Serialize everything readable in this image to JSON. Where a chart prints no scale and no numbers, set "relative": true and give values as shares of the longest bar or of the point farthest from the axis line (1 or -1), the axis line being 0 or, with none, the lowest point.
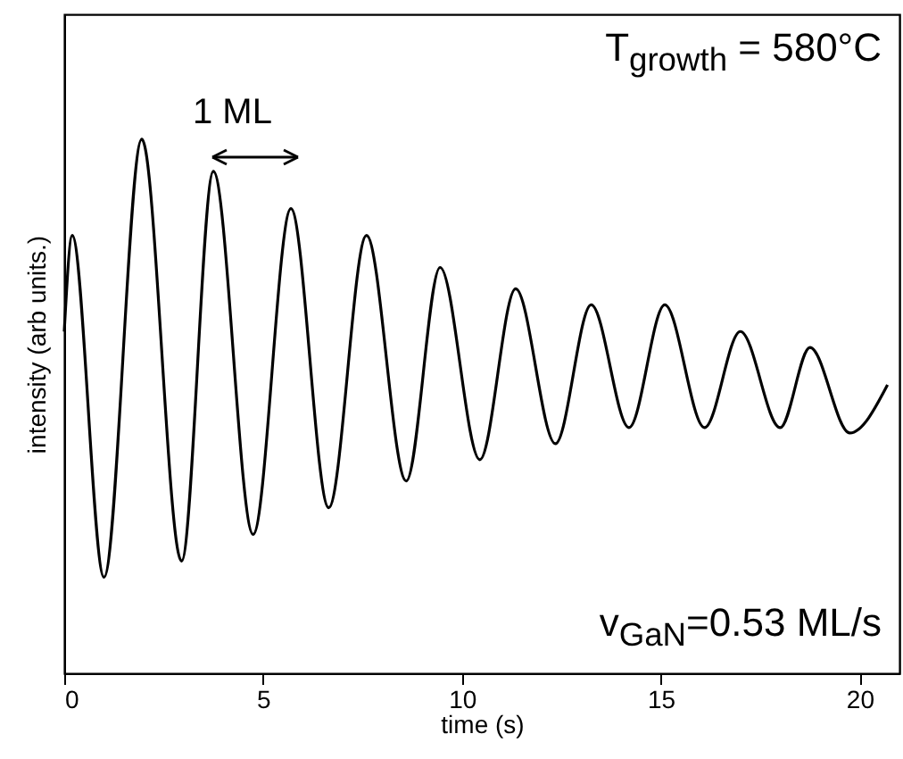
{
  "chart_data": {
    "type": "line",
    "relative": true,
    "xlabel": "time (s)",
    "ylabel": "intensity (arb units.)",
    "xlim": [
      0,
      21
    ],
    "xticks": [
      0,
      5,
      10,
      15,
      20
    ],
    "grid": false,
    "annotations": [
      "T$_{growth}$ = 580°C",
      "1 ML",
      "v$_{GaN}$=0.53 ML/s"
    ],
    "x": [
      0,
      0.2,
      1.0,
      1.95,
      2.95,
      3.75,
      4.75,
      5.7,
      6.65,
      7.6,
      8.6,
      9.45,
      10.45,
      11.35,
      12.35,
      13.25,
      14.2,
      15.1,
      16.1,
      17.0,
      18.0,
      18.75,
      19.75,
      20.7
    ],
    "series": [
      {
        "color": "#000000",
        "values": [
          0.64,
          0.82,
          0.18,
          1.0,
          0.21,
          0.94,
          0.26,
          0.87,
          0.31,
          0.82,
          0.36,
          0.76,
          0.4,
          0.72,
          0.43,
          0.69,
          0.46,
          0.69,
          0.46,
          0.64,
          0.46,
          0.61,
          0.45,
          0.54
        ]
      }
    ]
  }
}
